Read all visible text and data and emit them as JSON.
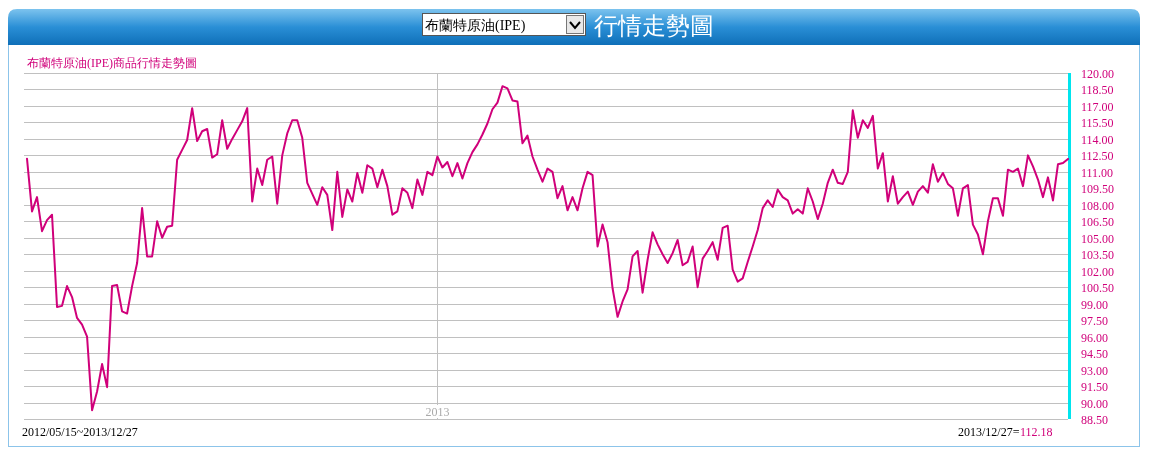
{
  "chart_data": {
    "type": "line",
    "title": "行情走勢圖",
    "subtitle": "布蘭特原油(IPE)商品行情走勢圖",
    "annotations": [
      "布蘭特原油(IPE)",
      "2012/05/15~2013/12/27",
      "2013/12/27=",
      "112.18"
    ],
    "color": "#d0007a",
    "grid": true,
    "categories": [
      null,
      null,
      null,
      null,
      null,
      null,
      null,
      null,
      null,
      null,
      null,
      null,
      null,
      null,
      null,
      null,
      null,
      null,
      null,
      null,
      null,
      null,
      null,
      null,
      null,
      null,
      null,
      null,
      null,
      null,
      null,
      null,
      null,
      null,
      null,
      null,
      null,
      null,
      null,
      null,
      null,
      null,
      null,
      null,
      null,
      null,
      null,
      null,
      null,
      null,
      null,
      null,
      null,
      null,
      null,
      null,
      null,
      null,
      null,
      null,
      null,
      null,
      null,
      null,
      null,
      null,
      null,
      null,
      null,
      null,
      null,
      null,
      null,
      null,
      null,
      null,
      null,
      null,
      null,
      null,
      null,
      null,
      "2013",
      null,
      null,
      null,
      null,
      null,
      null,
      null,
      null,
      null,
      null,
      null,
      null,
      null,
      null,
      null,
      null,
      null,
      null,
      null,
      null,
      null,
      null,
      null,
      null,
      null,
      null,
      null,
      null,
      null,
      null,
      null,
      null,
      null,
      null,
      null,
      null,
      null,
      null,
      null,
      null,
      null,
      null,
      null,
      null,
      null,
      null,
      null,
      null,
      null,
      null,
      null,
      null,
      null,
      null,
      null,
      null,
      null,
      null,
      null,
      null,
      null,
      null,
      null,
      null,
      null,
      null,
      null,
      null,
      null,
      null,
      null,
      null,
      null,
      null,
      null,
      null,
      null,
      null,
      null,
      null,
      null,
      null,
      null,
      null,
      null,
      null,
      null,
      null,
      null,
      null,
      null,
      null,
      null,
      null,
      null,
      null,
      null,
      null,
      null,
      null,
      null,
      null,
      null,
      null,
      null,
      null,
      null,
      null,
      null,
      null,
      null,
      null,
      null,
      null,
      null,
      null,
      null,
      null,
      null,
      null,
      null,
      null,
      null,
      null,
      null,
      null
    ],
    "ylim": [
      88.5,
      120
    ],
    "yticks": [
      {
        "value": 88.5,
        "label": "88.50"
      },
      {
        "value": 90,
        "label": "90.00"
      },
      {
        "value": 91.5,
        "label": "91.50"
      },
      {
        "value": 93,
        "label": "93.00"
      },
      {
        "value": 94.5,
        "label": "94.50"
      },
      {
        "value": 96,
        "label": "96.00"
      },
      {
        "value": 97.5,
        "label": "97.50"
      },
      {
        "value": 99,
        "label": "99.00"
      },
      {
        "value": 100.5,
        "label": "100.50"
      },
      {
        "value": 102,
        "label": "102.00"
      },
      {
        "value": 103.5,
        "label": "103.50"
      },
      {
        "value": 105,
        "label": "105.00"
      },
      {
        "value": 106.5,
        "label": "106.50"
      },
      {
        "value": 108,
        "label": "108.00"
      },
      {
        "value": 109.5,
        "label": "109.50"
      },
      {
        "value": 111,
        "label": "111.00"
      },
      {
        "value": 112.5,
        "label": "112.50"
      },
      {
        "value": 114,
        "label": "114.00"
      },
      {
        "value": 115.5,
        "label": "115.50"
      },
      {
        "value": 117,
        "label": "117.00"
      },
      {
        "value": 118.5,
        "label": "118.50"
      },
      {
        "value": 120,
        "label": "120.00"
      }
    ],
    "values": [
      112.2,
      107.4,
      108.7,
      105.6,
      106.6,
      107.1,
      98.7,
      98.8,
      100.6,
      99.6,
      97.7,
      97.1,
      96.0,
      89.3,
      91.0,
      93.5,
      91.4,
      100.6,
      100.7,
      98.3,
      98.1,
      100.6,
      102.7,
      107.7,
      103.3,
      103.3,
      106.5,
      105.0,
      106.0,
      106.1,
      112.1,
      113.0,
      113.9,
      116.8,
      113.8,
      114.7,
      114.9,
      112.3,
      112.6,
      115.7,
      113.1,
      114.0,
      114.8,
      115.6,
      116.8,
      108.3,
      111.3,
      109.8,
      112.1,
      112.4,
      108.1,
      112.5,
      114.5,
      115.7,
      115.7,
      114.1,
      110.0,
      109.0,
      108.0,
      109.6,
      108.9,
      105.7,
      111.0,
      106.9,
      109.4,
      108.3,
      110.9,
      109.1,
      111.6,
      111.3,
      109.6,
      111.2,
      109.7,
      107.1,
      107.4,
      109.5,
      109.1,
      107.7,
      110.3,
      108.9,
      111.0,
      110.7,
      112.4,
      111.4,
      111.9,
      110.6,
      111.8,
      110.4,
      111.8,
      112.8,
      113.5,
      114.4,
      115.4,
      116.7,
      117.3,
      118.8,
      118.6,
      117.5,
      117.4,
      113.6,
      114.3,
      112.4,
      111.2,
      110.1,
      111.3,
      111.0,
      108.6,
      109.7,
      107.5,
      108.7,
      107.5,
      109.5,
      111.0,
      110.7,
      104.2,
      106.2,
      104.6,
      100.4,
      97.8,
      99.2,
      100.3,
      103.3,
      103.8,
      100.0,
      103.0,
      105.5,
      104.4,
      103.5,
      102.7,
      103.6,
      104.8,
      102.5,
      102.8,
      104.2,
      100.5,
      103.1,
      103.8,
      104.6,
      103.0,
      105.9,
      106.1,
      102.1,
      101.0,
      101.3,
      102.8,
      104.2,
      105.7,
      107.7,
      108.4,
      107.8,
      109.4,
      108.7,
      108.4,
      107.2,
      107.6,
      107.2,
      109.5,
      108.3,
      106.7,
      108.1,
      110.0,
      111.2,
      110.0,
      109.9,
      111.0,
      116.6,
      114.1,
      115.7,
      115.0,
      116.1,
      111.3,
      112.7,
      108.3,
      110.6,
      108.1,
      108.7,
      109.2,
      108.0,
      109.2,
      109.7,
      109.1,
      111.7,
      110.1,
      110.9,
      109.9,
      109.5,
      107.0,
      109.5,
      109.8,
      106.2,
      105.3,
      103.5,
      106.5,
      108.6,
      108.6,
      107.0,
      111.2,
      111.0,
      111.3,
      109.7,
      112.5,
      111.5,
      110.3,
      108.7,
      110.5,
      108.4,
      111.7,
      111.8,
      112.18
    ]
  }
}
